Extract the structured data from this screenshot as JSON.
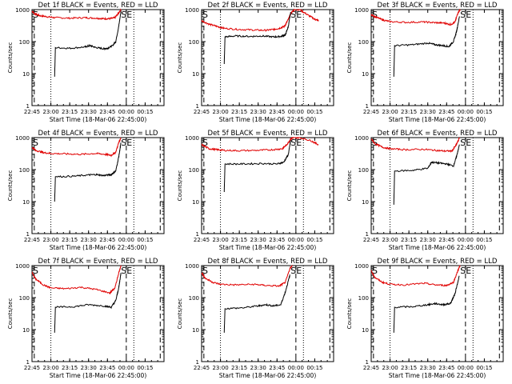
{
  "chart_data": [
    {
      "type": "line",
      "title": "Det 1f BLACK = Events, RED = LLD",
      "xlabel": "Start Time (18-Mar-06 22:45:00)",
      "ylabel": "Counts/sec",
      "yscale": "log",
      "ylim": [
        1,
        1000
      ],
      "yticks": [
        "1",
        "10",
        "100",
        "1000"
      ],
      "xticks": [
        "22:45",
        "23:00",
        "23:15",
        "23:30",
        "23:45",
        "00:00",
        "00:15"
      ],
      "markers": [
        "S",
        "SE"
      ],
      "series": [
        {
          "color": "#e00000",
          "x": [
            22.75,
            22.78,
            22.85,
            22.95,
            23.05,
            23.25,
            23.45,
            23.6,
            23.7,
            23.78,
            23.85,
            23.9,
            23.93
          ],
          "y": [
            900,
            750,
            650,
            600,
            560,
            540,
            560,
            540,
            520,
            520,
            560,
            800,
            1000
          ]
        },
        {
          "color": "#000000",
          "x": [
            23.05,
            23.06,
            23.25,
            23.45,
            23.52,
            23.6,
            23.7,
            23.75,
            23.82,
            23.86,
            23.9,
            23.93
          ],
          "y": [
            8,
            65,
            62,
            68,
            75,
            65,
            60,
            62,
            75,
            100,
            300,
            900
          ]
        }
      ]
    },
    {
      "type": "line",
      "title": "Det 2f BLACK = Events, RED = LLD",
      "xlabel": "Start Time (18-Mar-06 22:45:00)",
      "ylabel": "Counts/sec",
      "yscale": "log",
      "ylim": [
        1,
        1000
      ],
      "yticks": [
        "1",
        "10",
        "100",
        "1000"
      ],
      "xticks": [
        "22:45",
        "23:00",
        "23:15",
        "23:30",
        "23:45",
        "00:00",
        "00:15"
      ],
      "markers": [
        "S",
        "SE"
      ],
      "series": [
        {
          "color": "#e00000",
          "x": [
            22.75,
            22.85,
            22.95,
            23.05,
            23.25,
            23.45,
            23.6,
            23.7,
            23.78,
            23.85,
            23.9,
            23.94,
            23.98,
            24.05,
            24.15,
            24.25,
            24.3
          ],
          "y": [
            450,
            350,
            300,
            260,
            240,
            230,
            225,
            240,
            260,
            300,
            500,
            800,
            1000,
            1000,
            700,
            500,
            450
          ]
        },
        {
          "color": "#000000",
          "x": [
            23.05,
            23.06,
            23.2,
            23.4,
            23.55,
            23.7,
            23.8,
            23.86,
            23.9,
            23.93
          ],
          "y": [
            20,
            140,
            150,
            145,
            150,
            140,
            145,
            160,
            300,
            800
          ]
        }
      ]
    },
    {
      "type": "line",
      "title": "Det 3f BLACK = Events, RED = LLD",
      "xlabel": "Start Time (18-Mar-06 22:45:00)",
      "ylabel": "Counts/sec",
      "yscale": "log",
      "ylim": [
        1,
        1000
      ],
      "yticks": [
        "1",
        "10",
        "100",
        "1000"
      ],
      "xticks": [
        "22:45",
        "23:00",
        "23:15",
        "23:30",
        "23:45",
        "00:00",
        "00:15"
      ],
      "markers": [
        "S",
        "SE"
      ],
      "series": [
        {
          "color": "#e00000",
          "x": [
            22.75,
            22.8,
            22.9,
            23.0,
            23.2,
            23.45,
            23.6,
            23.72,
            23.8,
            23.86,
            23.9,
            23.93
          ],
          "y": [
            700,
            600,
            480,
            420,
            400,
            410,
            390,
            380,
            340,
            400,
            800,
            1000
          ]
        },
        {
          "color": "#000000",
          "x": [
            23.05,
            23.06,
            23.3,
            23.5,
            23.6,
            23.7,
            23.78,
            23.84,
            23.88,
            23.92
          ],
          "y": [
            8,
            75,
            80,
            90,
            80,
            75,
            70,
            100,
            200,
            600
          ]
        }
      ]
    },
    {
      "type": "line",
      "title": "Det 4f BLACK = Events, RED = LLD",
      "xlabel": "Start Time (18-Mar-06 22:45:00)",
      "ylabel": "Counts/sec",
      "yscale": "log",
      "ylim": [
        1,
        1000
      ],
      "yticks": [
        "1",
        "10",
        "100",
        "1000"
      ],
      "xticks": [
        "22:45",
        "23:00",
        "23:15",
        "23:30",
        "23:45",
        "00:00",
        "00:15"
      ],
      "markers": [
        "S",
        "SE"
      ],
      "series": [
        {
          "color": "#e00000",
          "x": [
            22.75,
            22.8,
            22.9,
            23.0,
            23.2,
            23.4,
            23.6,
            23.72,
            23.8,
            23.86,
            23.9,
            23.93
          ],
          "y": [
            500,
            400,
            340,
            320,
            310,
            300,
            320,
            300,
            280,
            350,
            700,
            1000
          ]
        },
        {
          "color": "#000000",
          "x": [
            23.05,
            23.06,
            23.3,
            23.5,
            23.6,
            23.7,
            23.8,
            23.86,
            23.9,
            23.93
          ],
          "y": [
            10,
            60,
            62,
            68,
            70,
            65,
            70,
            90,
            250,
            700
          ]
        }
      ]
    },
    {
      "type": "line",
      "title": "Det 5f BLACK = Events, RED = LLD",
      "xlabel": "Start Time (18-Mar-06 22:45:00)",
      "ylabel": "Counts/sec",
      "yscale": "log",
      "ylim": [
        1,
        1000
      ],
      "yticks": [
        "1",
        "10",
        "100",
        "1000"
      ],
      "xticks": [
        "22:45",
        "23:00",
        "23:15",
        "23:30",
        "23:45",
        "00:00",
        "00:15"
      ],
      "markers": [
        "S",
        "SE"
      ],
      "series": [
        {
          "color": "#e00000",
          "x": [
            22.75,
            22.85,
            22.95,
            23.05,
            23.25,
            23.5,
            23.7,
            23.82,
            23.88,
            23.93,
            23.97,
            24.05,
            24.2,
            24.3
          ],
          "y": [
            600,
            450,
            420,
            400,
            390,
            400,
            420,
            450,
            600,
            900,
            1000,
            1000,
            800,
            600
          ]
        },
        {
          "color": "#000000",
          "x": [
            23.05,
            23.06,
            23.3,
            23.55,
            23.75,
            23.84,
            23.9,
            23.93
          ],
          "y": [
            20,
            150,
            150,
            155,
            150,
            170,
            300,
            800
          ]
        }
      ]
    },
    {
      "type": "line",
      "title": "Det 6f BLACK = Events, RED = LLD",
      "xlabel": "Start Time (18-Mar-06 22:45:00)",
      "ylabel": "Counts/sec",
      "yscale": "log",
      "ylim": [
        1,
        1000
      ],
      "yticks": [
        "1",
        "10",
        "100",
        "1000"
      ],
      "xticks": [
        "22:45",
        "23:00",
        "23:15",
        "23:30",
        "23:45",
        "00:00",
        "00:15"
      ],
      "markers": [
        "S",
        "SE"
      ],
      "series": [
        {
          "color": "#e00000",
          "x": [
            22.75,
            22.8,
            22.9,
            23.0,
            23.2,
            23.45,
            23.6,
            23.72,
            23.82,
            23.88,
            23.92
          ],
          "y": [
            900,
            650,
            500,
            450,
            420,
            430,
            400,
            380,
            380,
            600,
            1000
          ]
        },
        {
          "color": "#000000",
          "x": [
            23.05,
            23.06,
            23.3,
            23.5,
            23.55,
            23.65,
            23.75,
            23.84,
            23.88,
            23.92
          ],
          "y": [
            8,
            90,
            95,
            110,
            170,
            160,
            150,
            130,
            250,
            600
          ]
        }
      ]
    },
    {
      "type": "line",
      "title": "Det 7f BLACK = Events, RED = LLD",
      "xlabel": "Start Time (18-Mar-06 22:45:00)",
      "ylabel": "Counts/sec",
      "yscale": "log",
      "ylim": [
        1,
        1000
      ],
      "yticks": [
        "1",
        "10",
        "100",
        "1000"
      ],
      "xticks": [
        "22:45",
        "23:00",
        "23:15",
        "23:30",
        "23:45",
        "00:00",
        "00:15"
      ],
      "markers": [
        "S",
        "SE"
      ],
      "series": [
        {
          "color": "#e00000",
          "x": [
            22.75,
            22.8,
            22.9,
            23.0,
            23.2,
            23.4,
            23.6,
            23.78,
            23.85,
            23.9,
            23.93
          ],
          "y": [
            600,
            380,
            250,
            200,
            190,
            210,
            180,
            140,
            200,
            600,
            1000
          ]
        },
        {
          "color": "#000000",
          "x": [
            23.05,
            23.06,
            23.3,
            23.5,
            23.7,
            23.8,
            23.86,
            23.9,
            23.93
          ],
          "y": [
            8,
            50,
            52,
            60,
            55,
            50,
            80,
            200,
            600
          ]
        }
      ]
    },
    {
      "type": "line",
      "title": "Det 8f BLACK = Events, RED = LLD",
      "xlabel": "Start Time (18-Mar-06 22:45:00)",
      "ylabel": "Counts/sec",
      "yscale": "log",
      "ylim": [
        1,
        1000
      ],
      "yticks": [
        "1",
        "10",
        "100",
        "1000"
      ],
      "xticks": [
        "22:45",
        "23:00",
        "23:15",
        "23:30",
        "23:45",
        "00:00",
        "00:15"
      ],
      "markers": [
        "S",
        "SE"
      ],
      "series": [
        {
          "color": "#e00000",
          "x": [
            22.75,
            22.8,
            22.9,
            23.0,
            23.2,
            23.45,
            23.6,
            23.78,
            23.86,
            23.92,
            23.95
          ],
          "y": [
            600,
            400,
            300,
            260,
            250,
            260,
            240,
            230,
            300,
            800,
            1000
          ]
        },
        {
          "color": "#000000",
          "x": [
            23.05,
            23.06,
            23.3,
            23.5,
            23.6,
            23.7,
            23.8,
            23.86,
            23.92
          ],
          "y": [
            8,
            45,
            48,
            55,
            60,
            55,
            60,
            150,
            500
          ]
        }
      ]
    },
    {
      "type": "line",
      "title": "Det 9f BLACK = Events, RED = LLD",
      "xlabel": "Start Time (18-Mar-06 22:45:00)",
      "ylabel": "Counts/sec",
      "yscale": "log",
      "ylim": [
        1,
        1000
      ],
      "yticks": [
        "1",
        "10",
        "100",
        "1000"
      ],
      "xticks": [
        "22:45",
        "23:00",
        "23:15",
        "23:30",
        "23:45",
        "00:00",
        "00:15"
      ],
      "markers": [
        "S",
        "SE"
      ],
      "series": [
        {
          "color": "#e00000",
          "x": [
            22.75,
            22.8,
            22.9,
            23.0,
            23.2,
            23.45,
            23.6,
            23.75,
            23.84,
            23.9,
            23.93
          ],
          "y": [
            700,
            420,
            300,
            260,
            250,
            280,
            250,
            240,
            300,
            700,
            1000
          ]
        },
        {
          "color": "#000000",
          "x": [
            23.05,
            23.06,
            23.3,
            23.5,
            23.6,
            23.7,
            23.8,
            23.86,
            23.92
          ],
          "y": [
            8,
            50,
            52,
            60,
            65,
            60,
            65,
            130,
            500
          ]
        }
      ]
    }
  ],
  "guides": {
    "dotted_x": [
      23.0,
      24.1
    ],
    "dashed_x": [
      22.78,
      24.0,
      24.45
    ]
  },
  "xrange": [
    22.75,
    24.5
  ]
}
